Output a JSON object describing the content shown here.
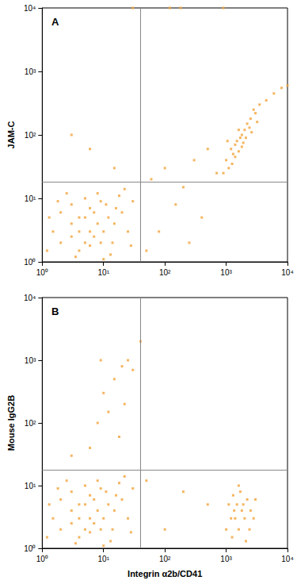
{
  "chart_data": [
    {
      "type": "scatter",
      "title": "A",
      "y_label": "JAM-C",
      "log": true,
      "grid": false,
      "color": "#f2a23a",
      "marker": "square",
      "xlim": [
        1,
        10000
      ],
      "ylim": [
        1,
        10000
      ],
      "xticks": [
        {
          "value": 1,
          "label": "10⁰"
        },
        {
          "value": 10,
          "label": "10¹"
        },
        {
          "value": 100,
          "label": "10²"
        },
        {
          "value": 1000,
          "label": "10³"
        },
        {
          "value": 10000,
          "label": "10⁴"
        }
      ],
      "yticks": [
        {
          "value": 1,
          "label": "10⁰"
        },
        {
          "value": 10,
          "label": "10¹"
        },
        {
          "value": 100,
          "label": "10²"
        },
        {
          "value": 1000,
          "label": "10³"
        },
        {
          "value": 10000,
          "label": "10⁴"
        }
      ],
      "gates": {
        "x": 40,
        "y": 18
      },
      "points": [
        [
          2,
          2
        ],
        [
          3,
          4
        ],
        [
          4,
          3
        ],
        [
          5,
          5
        ],
        [
          6,
          3
        ],
        [
          7,
          6
        ],
        [
          8,
          4
        ],
        [
          10,
          3
        ],
        [
          12,
          5
        ],
        [
          3,
          8
        ],
        [
          5,
          10
        ],
        [
          8,
          12
        ],
        [
          2,
          6
        ],
        [
          4,
          1.5
        ],
        [
          6,
          1.8
        ],
        [
          9,
          2
        ],
        [
          15,
          4
        ],
        [
          20,
          6
        ],
        [
          1.5,
          3
        ],
        [
          1.2,
          1.5
        ],
        [
          3,
          2.5
        ],
        [
          5,
          2
        ],
        [
          7,
          2.5
        ],
        [
          11,
          8
        ],
        [
          14,
          2
        ],
        [
          25,
          3
        ],
        [
          30,
          9
        ],
        [
          2.5,
          12
        ],
        [
          6,
          7
        ],
        [
          4,
          5
        ],
        [
          9,
          9
        ],
        [
          1.8,
          9
        ],
        [
          18,
          11
        ],
        [
          3.5,
          1.2
        ],
        [
          13,
          1.3
        ],
        [
          28,
          1.8
        ],
        [
          1.3,
          5
        ],
        [
          22,
          14
        ],
        [
          16,
          7
        ],
        [
          10,
          1.1
        ],
        [
          1000,
          40
        ],
        [
          1200,
          60
        ],
        [
          1500,
          80
        ],
        [
          1800,
          100
        ],
        [
          2000,
          120
        ],
        [
          1300,
          50
        ],
        [
          1600,
          55
        ],
        [
          2200,
          150
        ],
        [
          2500,
          180
        ],
        [
          3000,
          220
        ],
        [
          1100,
          30
        ],
        [
          1400,
          70
        ],
        [
          1700,
          90
        ],
        [
          2400,
          130
        ],
        [
          1900,
          75
        ],
        [
          1250,
          35
        ],
        [
          2800,
          250
        ],
        [
          3500,
          300
        ],
        [
          4500,
          350
        ],
        [
          6000,
          450
        ],
        [
          8000,
          550
        ],
        [
          10000,
          600
        ],
        [
          1600,
          120
        ],
        [
          2100,
          90
        ],
        [
          900,
          25
        ],
        [
          1050,
          80
        ],
        [
          2600,
          110
        ],
        [
          3200,
          160
        ],
        [
          1400,
          45
        ],
        [
          1800,
          65
        ],
        [
          60,
          20
        ],
        [
          100,
          30
        ],
        [
          300,
          40
        ],
        [
          500,
          60
        ],
        [
          700,
          25
        ],
        [
          150,
          8
        ],
        [
          400,
          5
        ],
        [
          80,
          3
        ],
        [
          200,
          15
        ],
        [
          3,
          100
        ],
        [
          6,
          60
        ],
        [
          15,
          30
        ],
        [
          50,
          1.5
        ],
        [
          250,
          2
        ],
        [
          120,
          10000
        ],
        [
          180,
          10000
        ],
        [
          900,
          10000
        ],
        [
          30,
          10000
        ]
      ]
    },
    {
      "type": "scatter",
      "title": "B",
      "y_label": "Mouse IgG2B",
      "x_label": "Integrin α2b/CD41",
      "log": true,
      "grid": false,
      "color": "#f2a23a",
      "marker": "square",
      "xlim": [
        1,
        10000
      ],
      "ylim": [
        1,
        10000
      ],
      "xticks": [
        {
          "value": 1,
          "label": "10⁰"
        },
        {
          "value": 10,
          "label": "10¹"
        },
        {
          "value": 100,
          "label": "10²"
        },
        {
          "value": 1000,
          "label": "10³"
        },
        {
          "value": 10000,
          "label": "10⁴"
        }
      ],
      "yticks": [
        {
          "value": 1,
          "label": "10⁰"
        },
        {
          "value": 10,
          "label": "10¹"
        },
        {
          "value": 100,
          "label": "10²"
        },
        {
          "value": 1000,
          "label": "10³"
        },
        {
          "value": 10000,
          "label": "10⁴"
        }
      ],
      "gates": {
        "x": 40,
        "y": 18
      },
      "points": [
        [
          2,
          2
        ],
        [
          3,
          4
        ],
        [
          4,
          3
        ],
        [
          5,
          5
        ],
        [
          6,
          3
        ],
        [
          7,
          6
        ],
        [
          8,
          4
        ],
        [
          10,
          3
        ],
        [
          12,
          5
        ],
        [
          3,
          8
        ],
        [
          5,
          10
        ],
        [
          8,
          12
        ],
        [
          2,
          6
        ],
        [
          4,
          1.5
        ],
        [
          6,
          1.8
        ],
        [
          9,
          2
        ],
        [
          15,
          4
        ],
        [
          20,
          6
        ],
        [
          1.5,
          3
        ],
        [
          1.2,
          1.5
        ],
        [
          3,
          2.5
        ],
        [
          5,
          2
        ],
        [
          7,
          2.5
        ],
        [
          11,
          8
        ],
        [
          14,
          2
        ],
        [
          25,
          3
        ],
        [
          30,
          9
        ],
        [
          2.5,
          12
        ],
        [
          6,
          7
        ],
        [
          4,
          5
        ],
        [
          9,
          9
        ],
        [
          1.8,
          9
        ],
        [
          18,
          11
        ],
        [
          3.5,
          1.2
        ],
        [
          13,
          1.3
        ],
        [
          28,
          1.8
        ],
        [
          1.3,
          5
        ],
        [
          22,
          14
        ],
        [
          16,
          7
        ],
        [
          10,
          1.1
        ],
        [
          1000,
          2
        ],
        [
          1200,
          3
        ],
        [
          1500,
          5
        ],
        [
          1800,
          4
        ],
        [
          2000,
          3
        ],
        [
          1300,
          7
        ],
        [
          1600,
          2
        ],
        [
          2200,
          6
        ],
        [
          2500,
          4
        ],
        [
          1100,
          5
        ],
        [
          1400,
          3
        ],
        [
          1700,
          8
        ],
        [
          2400,
          2
        ],
        [
          1900,
          5
        ],
        [
          1250,
          1.5
        ],
        [
          2800,
          3
        ],
        [
          1600,
          10
        ],
        [
          1350,
          4
        ],
        [
          2100,
          1.3
        ],
        [
          3000,
          6
        ],
        [
          8,
          100
        ],
        [
          10,
          300
        ],
        [
          15,
          500
        ],
        [
          20,
          800
        ],
        [
          25,
          1000
        ],
        [
          12,
          150
        ],
        [
          18,
          60
        ],
        [
          6,
          40
        ],
        [
          22,
          200
        ],
        [
          30,
          700
        ],
        [
          9,
          1000
        ],
        [
          50,
          12
        ],
        [
          200,
          8
        ],
        [
          500,
          5
        ],
        [
          100,
          2
        ],
        [
          40,
          2000
        ],
        [
          3,
          30
        ]
      ]
    }
  ]
}
